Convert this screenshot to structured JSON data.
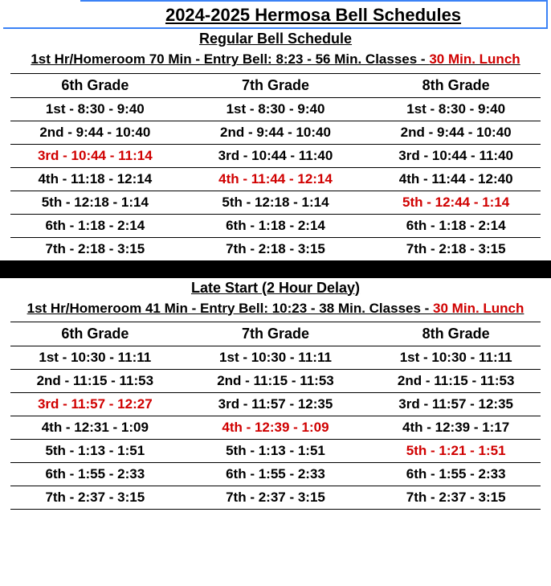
{
  "main_title": "2024-2025 Hermosa Bell Schedules",
  "colors": {
    "accent_blue": "#3b82f6",
    "red": "#d00000",
    "black": "#000000"
  },
  "schedules": [
    {
      "title": "Regular Bell Schedule",
      "subheader_a": "1st Hr/Homeroom 70 Min - Entry Bell: 8:23 - 56 Min. Classes - ",
      "subheader_red": "30 Min. Lunch",
      "grades": [
        "6th Grade",
        "7th Grade",
        "8th Grade"
      ],
      "rows": [
        [
          {
            "t": "1st - 8:30 - 9:40",
            "r": false
          },
          {
            "t": "1st - 8:30 - 9:40",
            "r": false
          },
          {
            "t": "1st - 8:30 - 9:40",
            "r": false
          }
        ],
        [
          {
            "t": "2nd - 9:44 - 10:40",
            "r": false
          },
          {
            "t": "2nd - 9:44 - 10:40",
            "r": false
          },
          {
            "t": "2nd - 9:44 - 10:40",
            "r": false
          }
        ],
        [
          {
            "t": "3rd - 10:44 - 11:14",
            "r": true
          },
          {
            "t": "3rd - 10:44 - 11:40",
            "r": false
          },
          {
            "t": "3rd - 10:44 - 11:40",
            "r": false
          }
        ],
        [
          {
            "t": "4th - 11:18 - 12:14",
            "r": false
          },
          {
            "t": "4th - 11:44 - 12:14",
            "r": true
          },
          {
            "t": "4th - 11:44 - 12:40",
            "r": false
          }
        ],
        [
          {
            "t": "5th - 12:18 - 1:14",
            "r": false
          },
          {
            "t": "5th - 12:18 - 1:14",
            "r": false
          },
          {
            "t": "5th - 12:44 - 1:14",
            "r": true
          }
        ],
        [
          {
            "t": "6th - 1:18 - 2:14",
            "r": false
          },
          {
            "t": "6th - 1:18 - 2:14",
            "r": false
          },
          {
            "t": "6th - 1:18 - 2:14",
            "r": false
          }
        ],
        [
          {
            "t": "7th - 2:18 - 3:15",
            "r": false
          },
          {
            "t": "7th - 2:18 - 3:15",
            "r": false
          },
          {
            "t": "7th - 2:18 - 3:15",
            "r": false
          }
        ]
      ]
    },
    {
      "title": "Late Start (2 Hour Delay)",
      "subheader_a": "1st Hr/Homeroom 41 Min - Entry Bell: 10:23 -  38 Min. Classes - ",
      "subheader_red": "30 Min. Lunch",
      "grades": [
        "6th Grade",
        "7th Grade",
        "8th Grade"
      ],
      "rows": [
        [
          {
            "t": "1st - 10:30 - 11:11",
            "r": false
          },
          {
            "t": "1st - 10:30 - 11:11",
            "r": false
          },
          {
            "t": "1st - 10:30 - 11:11",
            "r": false
          }
        ],
        [
          {
            "t": "2nd - 11:15 - 11:53",
            "r": false
          },
          {
            "t": "2nd - 11:15 - 11:53",
            "r": false
          },
          {
            "t": "2nd - 11:15 - 11:53",
            "r": false
          }
        ],
        [
          {
            "t": "3rd - 11:57 - 12:27",
            "r": true
          },
          {
            "t": "3rd - 11:57 - 12:35",
            "r": false
          },
          {
            "t": "3rd - 11:57 - 12:35",
            "r": false
          }
        ],
        [
          {
            "t": "4th - 12:31 - 1:09",
            "r": false
          },
          {
            "t": "4th - 12:39 - 1:09",
            "r": true
          },
          {
            "t": "4th - 12:39 - 1:17",
            "r": false
          }
        ],
        [
          {
            "t": "5th - 1:13 - 1:51",
            "r": false
          },
          {
            "t": "5th - 1:13 - 1:51",
            "r": false
          },
          {
            "t": "5th - 1:21 - 1:51",
            "r": true
          }
        ],
        [
          {
            "t": "6th - 1:55 - 2:33",
            "r": false
          },
          {
            "t": "6th - 1:55 - 2:33",
            "r": false
          },
          {
            "t": "6th - 1:55 - 2:33",
            "r": false
          }
        ],
        [
          {
            "t": "7th - 2:37 - 3:15",
            "r": false
          },
          {
            "t": "7th - 2:37 - 3:15",
            "r": false
          },
          {
            "t": "7th - 2:37 - 3:15",
            "r": false
          }
        ]
      ]
    }
  ]
}
